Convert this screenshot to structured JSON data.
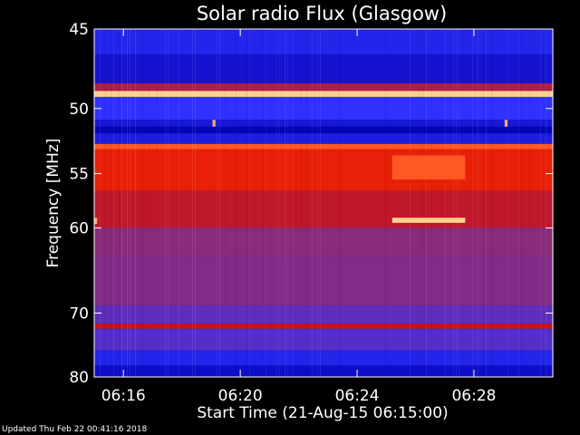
{
  "chart_data": {
    "type": "heatmap",
    "title": "Solar radio Flux (Glasgow)",
    "xlabel": "Start Time (21-Aug-15 06:15:00)",
    "ylabel": "Frequency [MHz]",
    "x_unit": "minutes after 06:15:00",
    "xlim": [
      0,
      15.7
    ],
    "ylim": [
      45,
      80
    ],
    "y_scale": "reciprocal",
    "x_ticks": [
      {
        "value": 1,
        "label": "06:16"
      },
      {
        "value": 5,
        "label": "06:20"
      },
      {
        "value": 9,
        "label": "06:24"
      },
      {
        "value": 13,
        "label": "06:28"
      }
    ],
    "y_ticks": [
      {
        "value": 45,
        "label": "45"
      },
      {
        "value": 50,
        "label": "50"
      },
      {
        "value": 55,
        "label": "55"
      },
      {
        "value": 60,
        "label": "60"
      },
      {
        "value": 70,
        "label": "70"
      },
      {
        "value": 80,
        "label": "80"
      }
    ],
    "colormap": [
      "#0000b0",
      "#3030ff",
      "#8a2c7a",
      "#d01010",
      "#ff3000",
      "#ffd090"
    ],
    "frequency_bands": [
      {
        "from": 45.0,
        "to": 46.5,
        "intensity": 0.15
      },
      {
        "from": 46.5,
        "to": 48.3,
        "intensity": 0.08
      },
      {
        "from": 48.3,
        "to": 48.8,
        "intensity": 0.5
      },
      {
        "from": 48.8,
        "to": 49.2,
        "intensity": 1.0
      },
      {
        "from": 49.2,
        "to": 50.8,
        "intensity": 0.2
      },
      {
        "from": 50.8,
        "to": 51.3,
        "intensity": 0.1
      },
      {
        "from": 51.3,
        "to": 51.8,
        "intensity": 0.02
      },
      {
        "from": 51.8,
        "to": 52.6,
        "intensity": 0.12
      },
      {
        "from": 52.6,
        "to": 53.0,
        "intensity": 0.85
      },
      {
        "from": 53.0,
        "to": 56.5,
        "intensity": 0.7
      },
      {
        "from": 56.5,
        "to": 60.0,
        "intensity": 0.55
      },
      {
        "from": 60.0,
        "to": 63.0,
        "intensity": 0.4
      },
      {
        "from": 63.0,
        "to": 69.0,
        "intensity": 0.38
      },
      {
        "from": 69.0,
        "to": 71.5,
        "intensity": 0.3
      },
      {
        "from": 71.5,
        "to": 72.2,
        "intensity": 0.6
      },
      {
        "from": 72.2,
        "to": 75.5,
        "intensity": 0.28
      },
      {
        "from": 75.5,
        "to": 78.0,
        "intensity": 0.15
      },
      {
        "from": 78.0,
        "to": 80.0,
        "intensity": 0.06
      }
    ],
    "events": [
      {
        "t_start": 10.2,
        "t_end": 12.7,
        "f_from": 53.5,
        "f_to": 55.5,
        "intensity": 0.85
      },
      {
        "t_start": 10.2,
        "t_end": 12.7,
        "f_from": 59.0,
        "f_to": 59.5,
        "intensity": 1.0
      },
      {
        "t_start": 0.0,
        "t_end": 0.1,
        "f_from": 59.0,
        "f_to": 59.6,
        "intensity": 0.95
      },
      {
        "t_start": 4.05,
        "t_end": 4.15,
        "f_from": 50.8,
        "f_to": 51.3,
        "intensity": 0.95
      },
      {
        "t_start": 14.05,
        "t_end": 14.15,
        "f_from": 50.8,
        "f_to": 51.3,
        "intensity": 0.95
      }
    ]
  },
  "footer": {
    "updated_text": "Updated Thu Feb 22 00:41:16 2018"
  }
}
